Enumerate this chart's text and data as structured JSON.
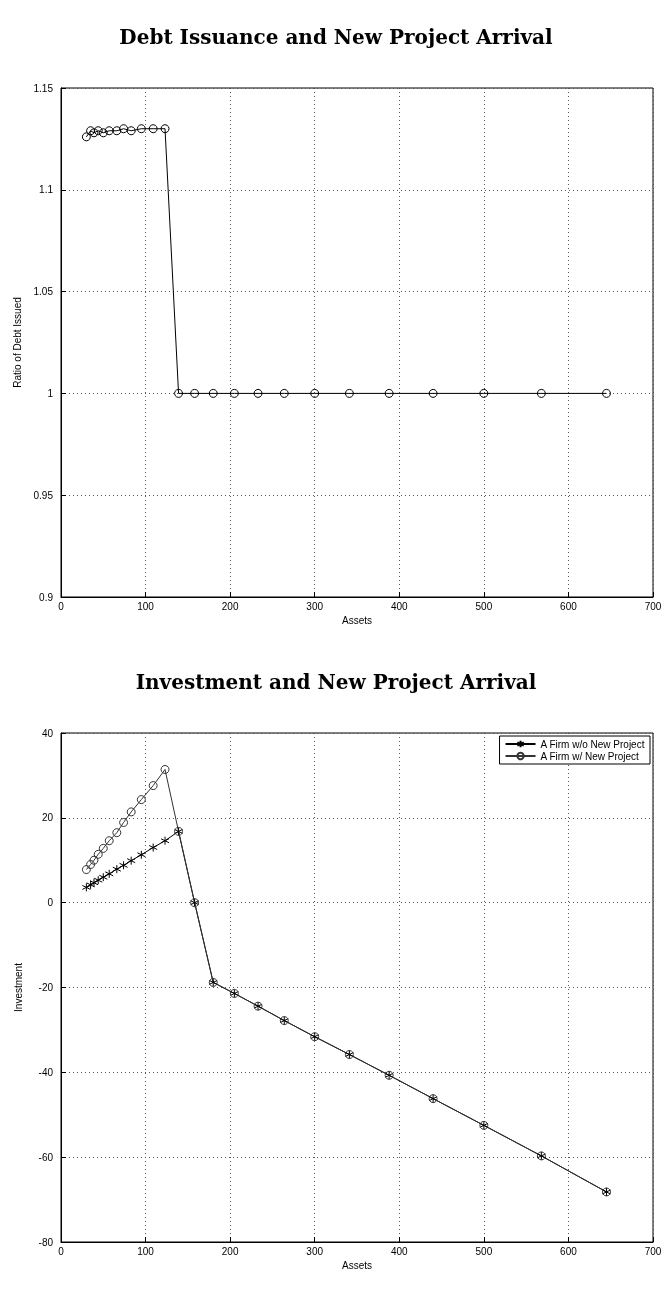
{
  "chart_data": [
    {
      "type": "line",
      "title": "Debt Issuance and New Project Arrival",
      "xlabel": "Assets",
      "ylabel": "Ratio of Debt Issued",
      "xlim": [
        0,
        700
      ],
      "xticks": [
        0,
        100,
        200,
        300,
        400,
        500,
        600,
        700
      ],
      "ylim": [
        0.9,
        1.15
      ],
      "yticks": [
        0.9,
        0.95,
        1,
        1.05,
        1.1,
        1.15
      ],
      "grid": true,
      "legend": false,
      "series": [
        {
          "color": "#000000",
          "marker": "circle",
          "x": [
            30,
            35,
            39,
            44,
            50,
            57,
            66,
            74,
            83,
            95,
            109,
            123,
            139,
            158,
            180,
            205,
            233,
            264,
            300,
            341,
            388,
            440,
            500,
            568,
            645
          ],
          "values": [
            1.126,
            1.129,
            1.128,
            1.129,
            1.128,
            1.129,
            1.129,
            1.13,
            1.129,
            1.13,
            1.13,
            1.13,
            1.0,
            1.0,
            1.0,
            1.0,
            1.0,
            1.0,
            1.0,
            1.0,
            1.0,
            1.0,
            1.0,
            1.0,
            1.0
          ]
        }
      ]
    },
    {
      "type": "line",
      "title": "Investment and New Project Arrival",
      "xlabel": "Assets",
      "ylabel": "Investment",
      "xlim": [
        0,
        700
      ],
      "xticks": [
        0,
        100,
        200,
        300,
        400,
        500,
        600,
        700
      ],
      "ylim": [
        -80,
        40
      ],
      "yticks": [
        -80,
        -60,
        -40,
        -20,
        0,
        20,
        40
      ],
      "grid": true,
      "legend": "top right",
      "series": [
        {
          "name": "A Firm w/o New Project",
          "color": "#000000",
          "marker": "cross",
          "x": [
            30,
            35,
            39,
            44,
            50,
            57,
            66,
            74,
            83,
            95,
            109,
            123,
            139,
            158,
            180,
            205,
            233,
            264,
            300,
            341,
            388,
            440,
            500,
            568,
            645
          ],
          "values": [
            3.6,
            4.2,
            4.7,
            5.3,
            6.0,
            6.8,
            7.9,
            8.8,
            9.9,
            11.3,
            13.0,
            14.6,
            16.8,
            0,
            -18.8,
            -21.4,
            -24.4,
            -27.8,
            -31.6,
            -35.8,
            -40.7,
            -46.2,
            -52.5,
            -59.7,
            -68.2
          ]
        },
        {
          "name": "A Firm w/ New Project",
          "color": "#333333",
          "marker": "circle",
          "x": [
            30,
            35,
            39,
            44,
            50,
            57,
            66,
            74,
            83,
            95,
            109,
            123,
            139,
            158,
            180,
            205,
            233,
            264,
            300,
            341,
            388,
            440,
            500,
            568,
            645
          ],
          "values": [
            7.8,
            9.0,
            10.0,
            11.4,
            12.8,
            14.6,
            16.5,
            18.9,
            21.4,
            24.3,
            27.6,
            31.4,
            16.8,
            0,
            -18.8,
            -21.4,
            -24.4,
            -27.8,
            -31.6,
            -35.8,
            -40.7,
            -46.2,
            -52.5,
            -59.7,
            -68.2
          ]
        }
      ]
    }
  ]
}
